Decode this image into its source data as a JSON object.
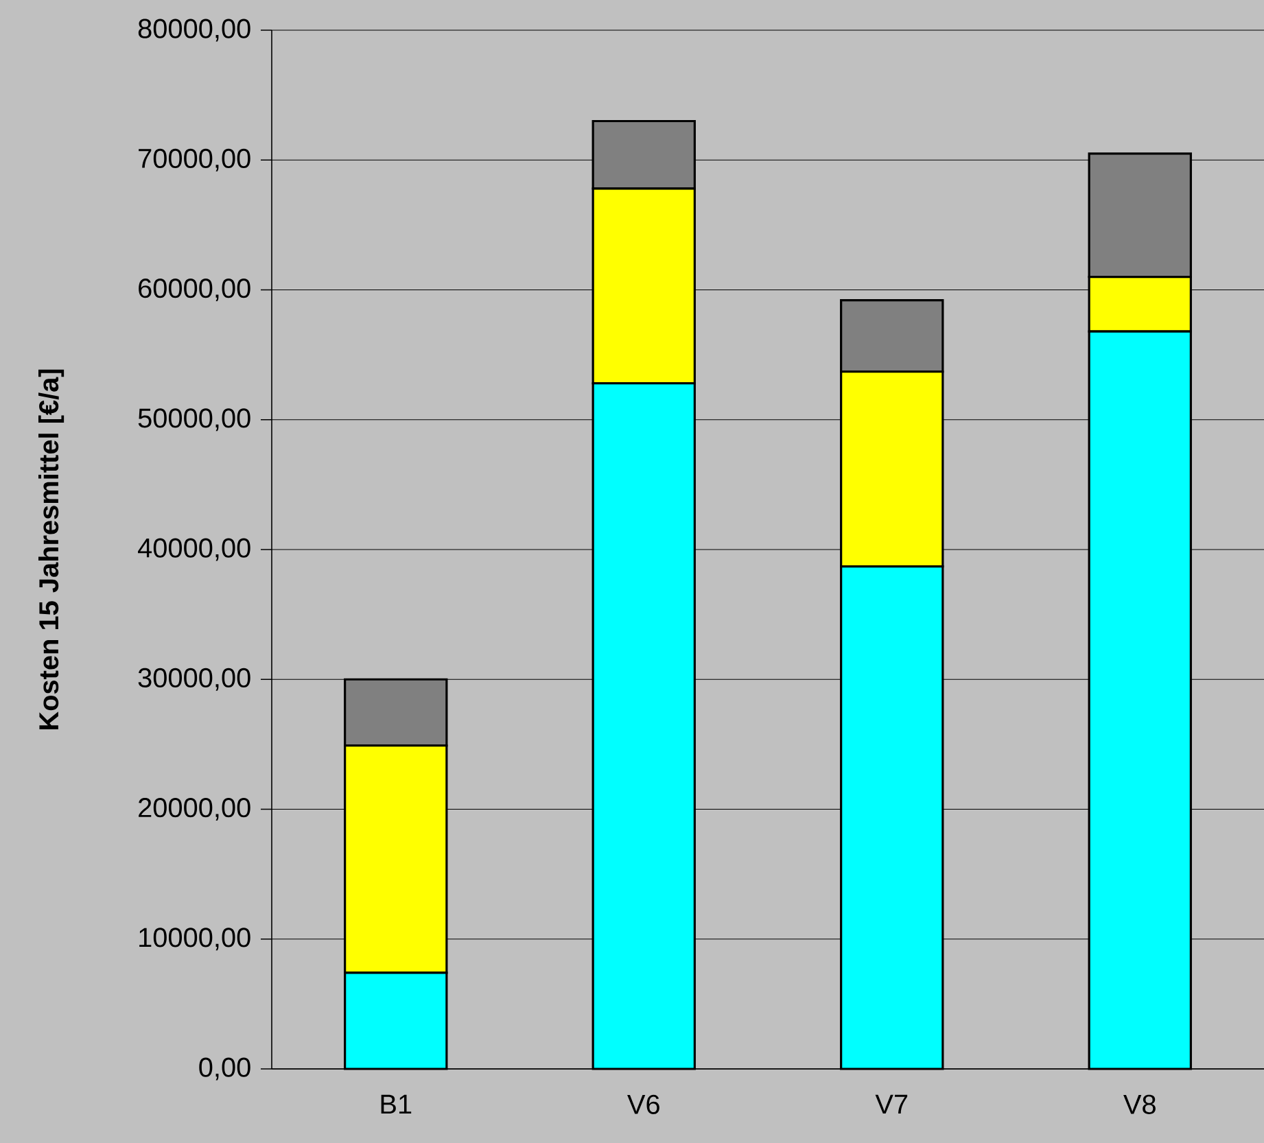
{
  "chart_data": {
    "type": "bar",
    "stacked": true,
    "ylabel": "Kosten 15 Jahresmittel [€/a]",
    "categories": [
      "B1",
      "V6",
      "V7",
      "V8"
    ],
    "series": [
      {
        "color": "#00ffff",
        "values": [
          7400,
          52800,
          38700,
          56800
        ]
      },
      {
        "color": "#ffff00",
        "values": [
          17500,
          15000,
          15000,
          4200
        ]
      },
      {
        "color": "#808080",
        "values": [
          5100,
          5200,
          5500,
          9500
        ]
      }
    ],
    "ylim": [
      0,
      80000
    ],
    "yticks": [
      {
        "value": 0,
        "label": "0,00"
      },
      {
        "value": 10000,
        "label": "10000,00"
      },
      {
        "value": 20000,
        "label": "20000,00"
      },
      {
        "value": 30000,
        "label": "30000,00"
      },
      {
        "value": 40000,
        "label": "40000,00"
      },
      {
        "value": 50000,
        "label": "50000,00"
      },
      {
        "value": 60000,
        "label": "60000,00"
      },
      {
        "value": 70000,
        "label": "70000,00"
      },
      {
        "value": 80000,
        "label": "80000,00"
      }
    ],
    "grid": "y"
  }
}
